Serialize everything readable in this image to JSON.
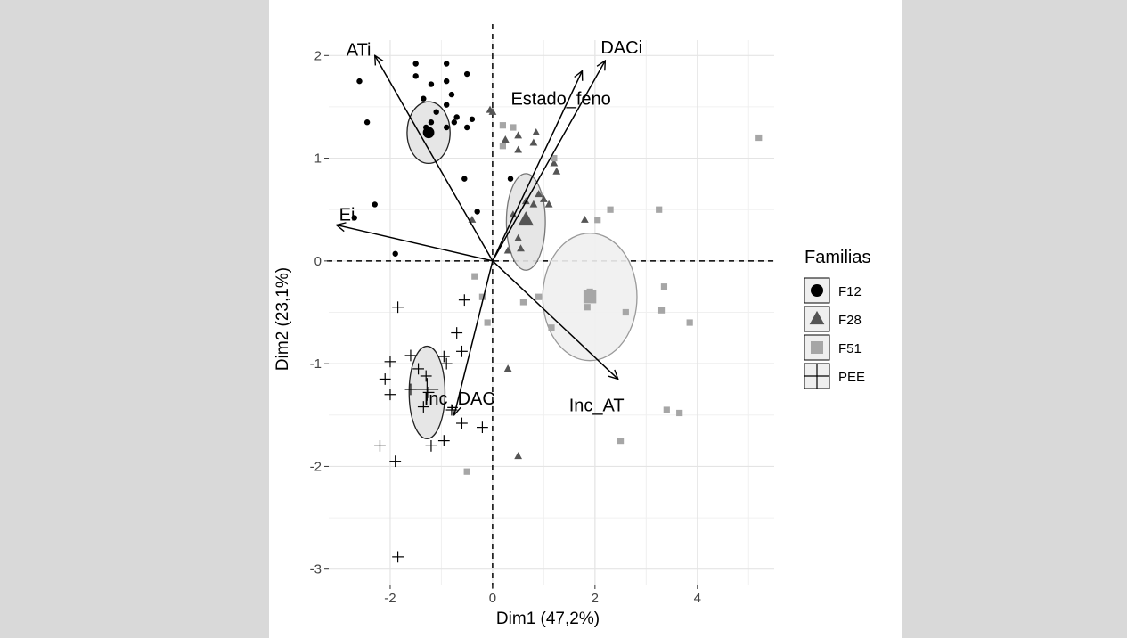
{
  "chart_data": {
    "type": "scatter",
    "subtype": "pca-biplot",
    "title": "",
    "xlabel": "Dim1 (47,2%)",
    "ylabel": "Dim2 (23,1%)",
    "xlim": [
      -3.2,
      5.5
    ],
    "ylim": [
      -3.15,
      2.15
    ],
    "x_ticks": [
      -2,
      0,
      2,
      4
    ],
    "x_tick_labels": [
      "-2",
      "0",
      "2",
      "4"
    ],
    "y_ticks": [
      -3,
      -2,
      -1,
      0,
      1,
      2
    ],
    "y_tick_labels": [
      "-3",
      "-2",
      "-1",
      "0",
      "1",
      "2"
    ],
    "grid": true,
    "reference_lines": "dashed lines at x=0 and y=0",
    "legend": {
      "title": "Familias",
      "position": "right"
    },
    "series": [
      {
        "name": "F12",
        "marker": "circle",
        "color": "#000000",
        "points": [
          [
            -1.5,
            1.92
          ],
          [
            -0.9,
            1.92
          ],
          [
            -1.5,
            1.8
          ],
          [
            -0.9,
            1.75
          ],
          [
            -0.5,
            1.82
          ],
          [
            -2.6,
            1.75
          ],
          [
            -1.2,
            1.72
          ],
          [
            -0.8,
            1.62
          ],
          [
            -1.35,
            1.58
          ],
          [
            -0.9,
            1.52
          ],
          [
            -1.1,
            1.45
          ],
          [
            -0.7,
            1.4
          ],
          [
            -0.4,
            1.38
          ],
          [
            -0.75,
            1.35
          ],
          [
            -2.45,
            1.35
          ],
          [
            -1.3,
            1.3
          ],
          [
            -1.2,
            1.35
          ],
          [
            -0.9,
            1.3
          ],
          [
            -0.5,
            1.3
          ],
          [
            -0.55,
            0.8
          ],
          [
            0.35,
            0.8
          ],
          [
            -2.3,
            0.55
          ],
          [
            -0.3,
            0.48
          ],
          [
            -2.7,
            0.42
          ],
          [
            -1.9,
            0.07
          ]
        ],
        "centroid": [
          -1.25,
          1.25
        ],
        "ellipse": {
          "cx": -1.25,
          "cy": 1.25,
          "rx": 0.42,
          "ry": 0.3
        }
      },
      {
        "name": "F28",
        "marker": "triangle",
        "color": "#555555",
        "points": [
          [
            -0.05,
            1.47
          ],
          [
            0.0,
            1.45
          ],
          [
            0.25,
            1.18
          ],
          [
            0.5,
            1.22
          ],
          [
            0.85,
            1.25
          ],
          [
            0.5,
            1.08
          ],
          [
            0.8,
            1.15
          ],
          [
            1.2,
            0.95
          ],
          [
            1.25,
            0.87
          ],
          [
            0.65,
            0.58
          ],
          [
            0.8,
            0.55
          ],
          [
            0.9,
            0.65
          ],
          [
            1.0,
            0.6
          ],
          [
            0.4,
            0.45
          ],
          [
            0.5,
            0.22
          ],
          [
            0.55,
            0.12
          ],
          [
            -0.4,
            0.4
          ],
          [
            0.3,
            0.1
          ],
          [
            1.8,
            0.4
          ],
          [
            0.3,
            -1.05
          ],
          [
            0.5,
            -1.9
          ],
          [
            1.1,
            0.55
          ]
        ],
        "centroid": [
          0.65,
          0.4
        ],
        "ellipse": {
          "cx": 0.65,
          "cy": 0.38,
          "rx": 0.38,
          "ry": 0.47
        }
      },
      {
        "name": "F51",
        "marker": "square",
        "color": "#a6a6a6",
        "points": [
          [
            0.2,
            1.32
          ],
          [
            0.4,
            1.3
          ],
          [
            1.2,
            1.0
          ],
          [
            0.2,
            1.12
          ],
          [
            5.2,
            1.2
          ],
          [
            2.3,
            0.5
          ],
          [
            3.25,
            0.5
          ],
          [
            2.05,
            0.4
          ],
          [
            3.35,
            -0.25
          ],
          [
            -0.35,
            -0.15
          ],
          [
            -0.2,
            -0.35
          ],
          [
            -0.1,
            -0.6
          ],
          [
            0.6,
            -0.4
          ],
          [
            0.9,
            -0.35
          ],
          [
            1.15,
            -0.65
          ],
          [
            1.85,
            -0.35
          ],
          [
            1.9,
            -0.3
          ],
          [
            1.85,
            -0.45
          ],
          [
            2.6,
            -0.5
          ],
          [
            3.3,
            -0.48
          ],
          [
            3.85,
            -0.6
          ],
          [
            3.4,
            -1.45
          ],
          [
            3.65,
            -1.48
          ],
          [
            2.5,
            -1.75
          ],
          [
            -0.5,
            -2.05
          ]
        ],
        "centroid": [
          1.9,
          -0.35
        ],
        "ellipse": {
          "cx": 1.9,
          "cy": -0.35,
          "rx": 0.92,
          "ry": 0.62
        }
      },
      {
        "name": "PEE",
        "marker": "cross",
        "color": "#000000",
        "points": [
          [
            -1.85,
            -0.45
          ],
          [
            -0.55,
            -0.38
          ],
          [
            -0.7,
            -0.7
          ],
          [
            -1.6,
            -0.92
          ],
          [
            -2.0,
            -0.98
          ],
          [
            -0.95,
            -0.93
          ],
          [
            -0.6,
            -0.88
          ],
          [
            -0.9,
            -1.0
          ],
          [
            -1.45,
            -1.05
          ],
          [
            -1.3,
            -1.12
          ],
          [
            -2.1,
            -1.15
          ],
          [
            -1.6,
            -1.25
          ],
          [
            -1.25,
            -1.28
          ],
          [
            -1.35,
            -1.42
          ],
          [
            -2.0,
            -1.3
          ],
          [
            -0.8,
            -1.45
          ],
          [
            -0.6,
            -1.58
          ],
          [
            -0.2,
            -1.62
          ],
          [
            -0.95,
            -1.75
          ],
          [
            -1.2,
            -1.8
          ],
          [
            -2.2,
            -1.8
          ],
          [
            -1.9,
            -1.95
          ],
          [
            -1.85,
            -2.88
          ]
        ],
        "centroid": [
          -1.28,
          -1.25
        ],
        "ellipse": {
          "cx": -1.28,
          "cy": -1.28,
          "rx": 0.35,
          "ry": 0.45
        }
      }
    ],
    "variable_arrows": [
      {
        "name": "ATi",
        "x": -2.3,
        "y": 2.0
      },
      {
        "name": "DACi",
        "x": 2.2,
        "y": 1.95
      },
      {
        "name": "Estado_feno",
        "x": 1.75,
        "y": 1.85
      },
      {
        "name": "Ei",
        "x": -3.05,
        "y": 0.35
      },
      {
        "name": "Inc_AT",
        "x": 2.45,
        "y": -1.15
      },
      {
        "name": "Inc_DAC",
        "x": -0.75,
        "y": -1.5
      }
    ]
  }
}
